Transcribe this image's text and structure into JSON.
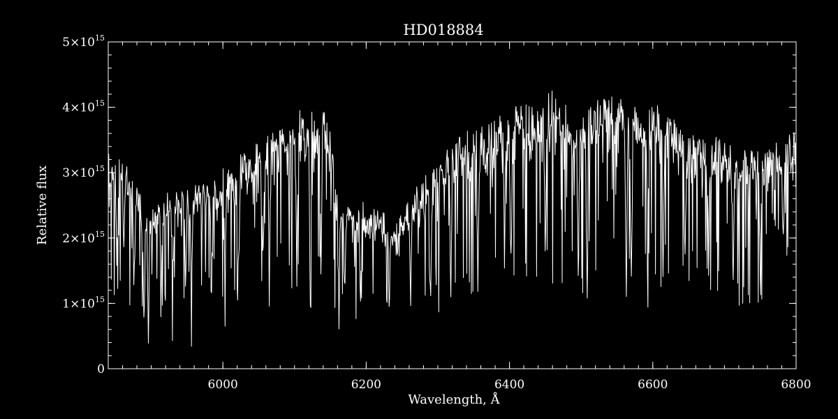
{
  "chart_data": {
    "type": "line",
    "title": "HD018884",
    "xlabel": "Wavelength, Å",
    "ylabel": "Relative flux",
    "xlim": [
      5840,
      6800
    ],
    "ylim": [
      0,
      5000000000000000.0
    ],
    "grid": false,
    "legend": "none",
    "colors": {
      "background": "#000000",
      "foreground": "#ffffff"
    },
    "x_ticks": [
      {
        "value": 6000,
        "label": "6000"
      },
      {
        "value": 6200,
        "label": "6200"
      },
      {
        "value": 6400,
        "label": "6400"
      },
      {
        "value": 6600,
        "label": "6600"
      },
      {
        "value": 6800,
        "label": "6800"
      }
    ],
    "x_minor_step": 20,
    "y_ticks": [
      {
        "value": 0,
        "mantissa": "0",
        "exponent": ""
      },
      {
        "value": 1000000000000000.0,
        "mantissa": "1×10",
        "exponent": "15"
      },
      {
        "value": 2000000000000000.0,
        "mantissa": "2×10",
        "exponent": "15"
      },
      {
        "value": 3000000000000000.0,
        "mantissa": "3×10",
        "exponent": "15"
      },
      {
        "value": 4000000000000000.0,
        "mantissa": "4×10",
        "exponent": "15"
      },
      {
        "value": 5000000000000000.0,
        "mantissa": "5×10",
        "exponent": "15"
      }
    ],
    "y_minor_step": 200000000000000.0,
    "series": [
      {
        "x": [
          5840,
          5860,
          5880,
          5890,
          5900,
          5920,
          5940,
          5960,
          5980,
          6000,
          6020,
          6040,
          6060,
          6080,
          6100,
          6120,
          6140,
          6150,
          6160,
          6180,
          6200,
          6220,
          6240,
          6260,
          6280,
          6300,
          6320,
          6340,
          6360,
          6380,
          6400,
          6420,
          6440,
          6460,
          6480,
          6500,
          6520,
          6540,
          6560,
          6580,
          6600,
          6620,
          6640,
          6660,
          6680,
          6700,
          6720,
          6740,
          6760,
          6780,
          6800
        ],
        "y": [
          3100000000000000.0,
          2950000000000000.0,
          2700000000000000.0,
          2250000000000000.0,
          2350000000000000.0,
          2500000000000000.0,
          2550000000000000.0,
          2600000000000000.0,
          2750000000000000.0,
          2850000000000000.0,
          3000000000000000.0,
          3150000000000000.0,
          3400000000000000.0,
          3550000000000000.0,
          3650000000000000.0,
          3750000000000000.0,
          3700000000000000.0,
          3400000000000000.0,
          2500000000000000.0,
          2450000000000000.0,
          2350000000000000.0,
          2250000000000000.0,
          2100000000000000.0,
          2400000000000000.0,
          2750000000000000.0,
          2950000000000000.0,
          3200000000000000.0,
          3400000000000000.0,
          3450000000000000.0,
          3600000000000000.0,
          3700000000000000.0,
          3750000000000000.0,
          3800000000000000.0,
          3950000000000000.0,
          3750000000000000.0,
          3550000000000000.0,
          3800000000000000.0,
          3950000000000000.0,
          3800000000000000.0,
          3750000000000000.0,
          3750000000000000.0,
          3700000000000000.0,
          3500000000000000.0,
          3300000000000000.0,
          3350000000000000.0,
          3250000000000000.0,
          3100000000000000.0,
          3200000000000000.0,
          3150000000000000.0,
          3300000000000000.0,
          3400000000000000.0
        ]
      }
    ],
    "absorption_lines": [
      {
        "x": 5852,
        "depth": 0.55
      },
      {
        "x": 5862,
        "depth": 0.45
      },
      {
        "x": 5876,
        "depth": 0.65
      },
      {
        "x": 5890,
        "depth": 0.88
      },
      {
        "x": 5896,
        "depth": 0.87
      },
      {
        "x": 5914,
        "depth": 0.5
      },
      {
        "x": 5930,
        "depth": 0.55
      },
      {
        "x": 5948,
        "depth": 0.6
      },
      {
        "x": 5956,
        "depth": 0.68
      },
      {
        "x": 5984,
        "depth": 0.62
      },
      {
        "x": 6003,
        "depth": 0.65
      },
      {
        "x": 6022,
        "depth": 0.6
      },
      {
        "x": 6056,
        "depth": 0.66
      },
      {
        "x": 6065,
        "depth": 0.64
      },
      {
        "x": 6103,
        "depth": 0.74
      },
      {
        "x": 6122,
        "depth": 0.73
      },
      {
        "x": 6137,
        "depth": 0.66
      },
      {
        "x": 6162,
        "depth": 0.72
      },
      {
        "x": 6170,
        "depth": 0.66
      },
      {
        "x": 6192,
        "depth": 0.7
      },
      {
        "x": 6232,
        "depth": 0.62
      },
      {
        "x": 6262,
        "depth": 0.64
      },
      {
        "x": 6290,
        "depth": 0.72
      },
      {
        "x": 6318,
        "depth": 0.68
      },
      {
        "x": 6356,
        "depth": 0.7
      },
      {
        "x": 6393,
        "depth": 0.6
      },
      {
        "x": 6402,
        "depth": 0.72
      },
      {
        "x": 6450,
        "depth": 0.62
      },
      {
        "x": 6496,
        "depth": 0.8
      },
      {
        "x": 6508,
        "depth": 0.72
      },
      {
        "x": 6563,
        "depth": 0.82
      },
      {
        "x": 6570,
        "depth": 0.8
      },
      {
        "x": 6593,
        "depth": 0.66
      },
      {
        "x": 6615,
        "depth": 0.62
      },
      {
        "x": 6645,
        "depth": 0.6
      },
      {
        "x": 6678,
        "depth": 0.58
      },
      {
        "x": 6712,
        "depth": 0.62
      },
      {
        "x": 6750,
        "depth": 0.58
      },
      {
        "x": 6782,
        "depth": 0.55
      }
    ]
  }
}
